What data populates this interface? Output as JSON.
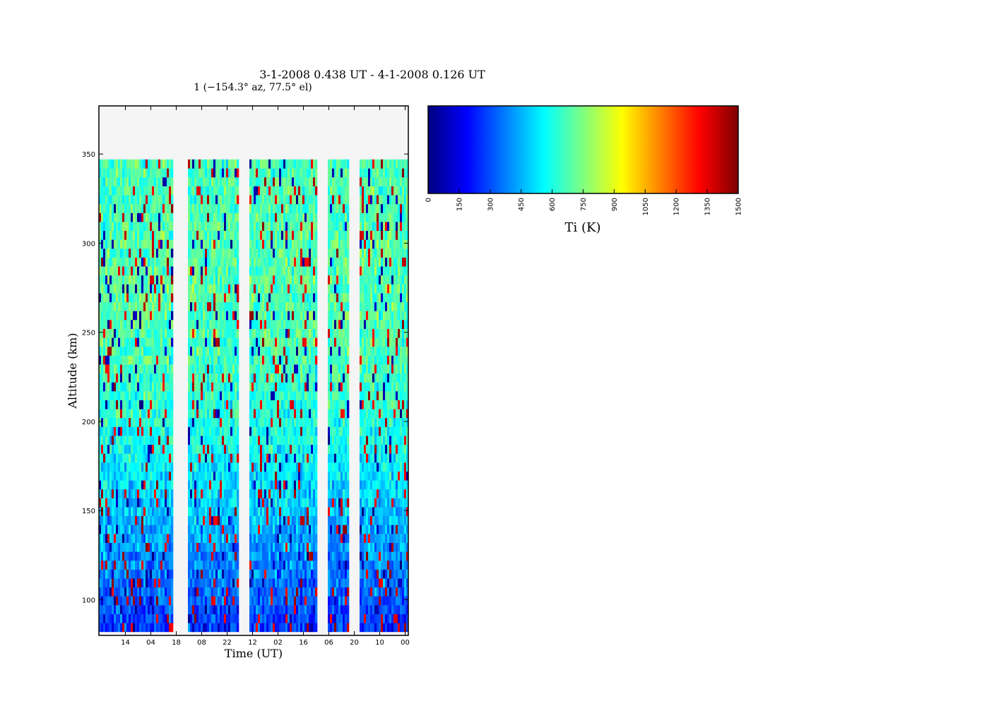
{
  "chart_data": {
    "type": "heatmap",
    "title": "3-1-2008 0.438 UT - 4-1-2008 0.126 UT",
    "subtitle": "1 (−154.3° az, 77.5° el)",
    "xlabel": "Time (UT)",
    "ylabel": "Altitude (km)",
    "x_tick_labels": [
      "14",
      "04",
      "18",
      "08",
      "22",
      "12",
      "02",
      "16",
      "06",
      "20",
      "10",
      "00"
    ],
    "y_tick_labels": [
      "100",
      "150",
      "200",
      "250",
      "300",
      "350"
    ],
    "y_ticks": [
      100,
      150,
      200,
      250,
      300,
      350
    ],
    "ylim": [
      80,
      377
    ],
    "data_altitude_range": [
      82,
      347
    ],
    "data_gaps_fraction": [
      [
        0.243,
        0.285
      ],
      [
        0.452,
        0.488
      ],
      [
        0.707,
        0.742
      ],
      [
        0.809,
        0.842
      ]
    ],
    "colorbar": {
      "label": "Ti (K)",
      "range": [
        0,
        1500
      ],
      "tick_labels": [
        "0",
        "150",
        "300",
        "450",
        "600",
        "750",
        "900",
        "1050",
        "1200",
        "1350",
        "1500"
      ],
      "colormap": "jet"
    },
    "colors": {
      "background": "#ffffff",
      "no_data": "#f5f5f5",
      "jet_stops": [
        "#00007f",
        "#0000ff",
        "#007fff",
        "#00ffff",
        "#7fff7f",
        "#ffff00",
        "#ff7f00",
        "#ff0000",
        "#7f0000"
      ]
    }
  }
}
